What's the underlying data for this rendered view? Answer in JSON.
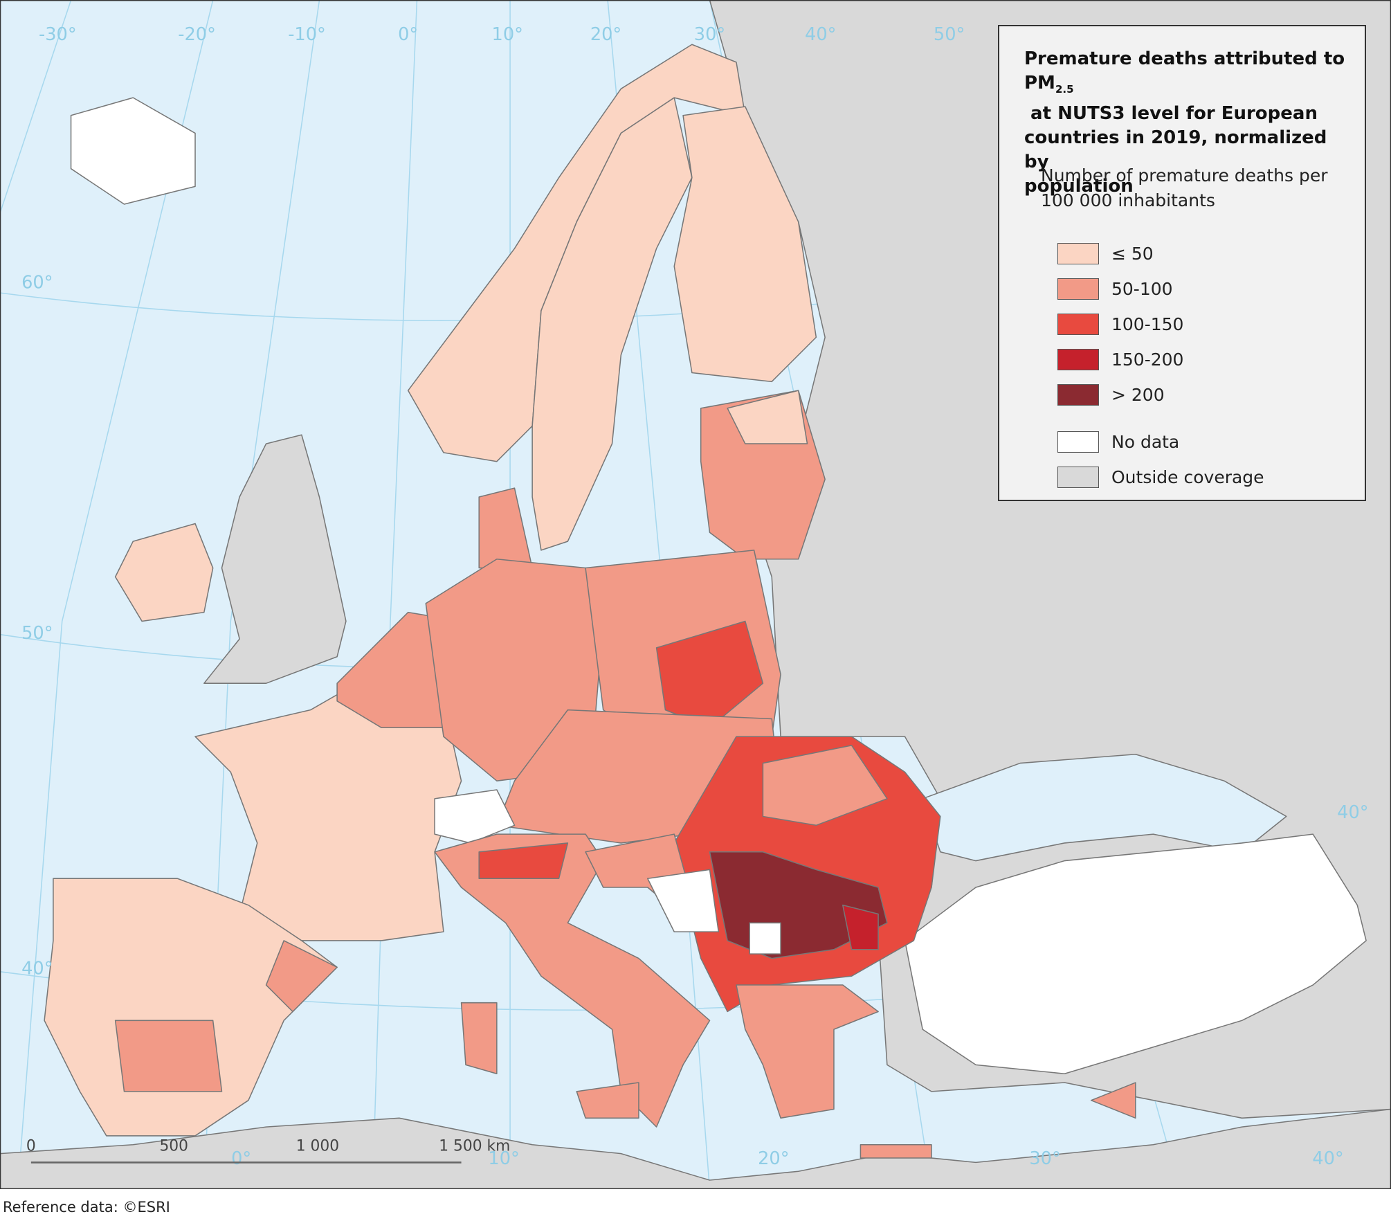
{
  "title": {
    "line1": "Premature deaths attributed to",
    "line2_before": "PM",
    "line2_sub": "2.5",
    "line2_after": " at NUTS3 level for European",
    "line3": "countries in 2019, normalized by",
    "line4": "population"
  },
  "legend": {
    "subtitle": "Number of premature deaths per 100 000 inhabitants",
    "items": [
      {
        "label": "≤ 50",
        "color": "#fbd5c3"
      },
      {
        "label": "50-100",
        "color": "#f29a87"
      },
      {
        "label": "100-150",
        "color": "#e84a3f"
      },
      {
        "label": "150-200",
        "color": "#c5212c"
      },
      {
        "label": "> 200",
        "color": "#8b2a31"
      },
      {
        "label": "No data",
        "color": "#ffffff"
      },
      {
        "label": "Outside coverage",
        "color": "#d9d9d9"
      }
    ]
  },
  "graticule": {
    "top": [
      "-30°",
      "-20°",
      "-10°",
      "0°",
      "10°",
      "20°",
      "30°",
      "40°",
      "50°"
    ],
    "left": [
      "60°",
      "50°",
      "40°"
    ],
    "bottom": [
      "0°",
      "10°",
      "20°",
      "30°",
      "40°"
    ],
    "right": [
      "40°"
    ]
  },
  "scale_bar": [
    "0",
    "500",
    "1 000",
    "1 500 km"
  ],
  "footer": "Reference data: ©ESRI"
}
